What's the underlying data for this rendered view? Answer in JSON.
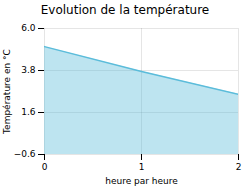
{
  "chart_data": {
    "type": "area",
    "title": "Evolution de la température",
    "xlabel": "heure par heure",
    "ylabel": "Température en °C",
    "x": [
      0,
      1,
      2
    ],
    "values": [
      5.05,
      3.75,
      2.55
    ],
    "color": "#5bbcda",
    "xlim": [
      0,
      2
    ],
    "xticks": [
      0,
      1,
      2
    ],
    "ylim": [
      -0.6,
      6.0
    ],
    "yticks": [
      {
        "value": -0.6,
        "label": "−0.6"
      },
      1.6,
      3.8,
      {
        "value": 6.0,
        "label": "6.0"
      }
    ],
    "grid": true
  }
}
